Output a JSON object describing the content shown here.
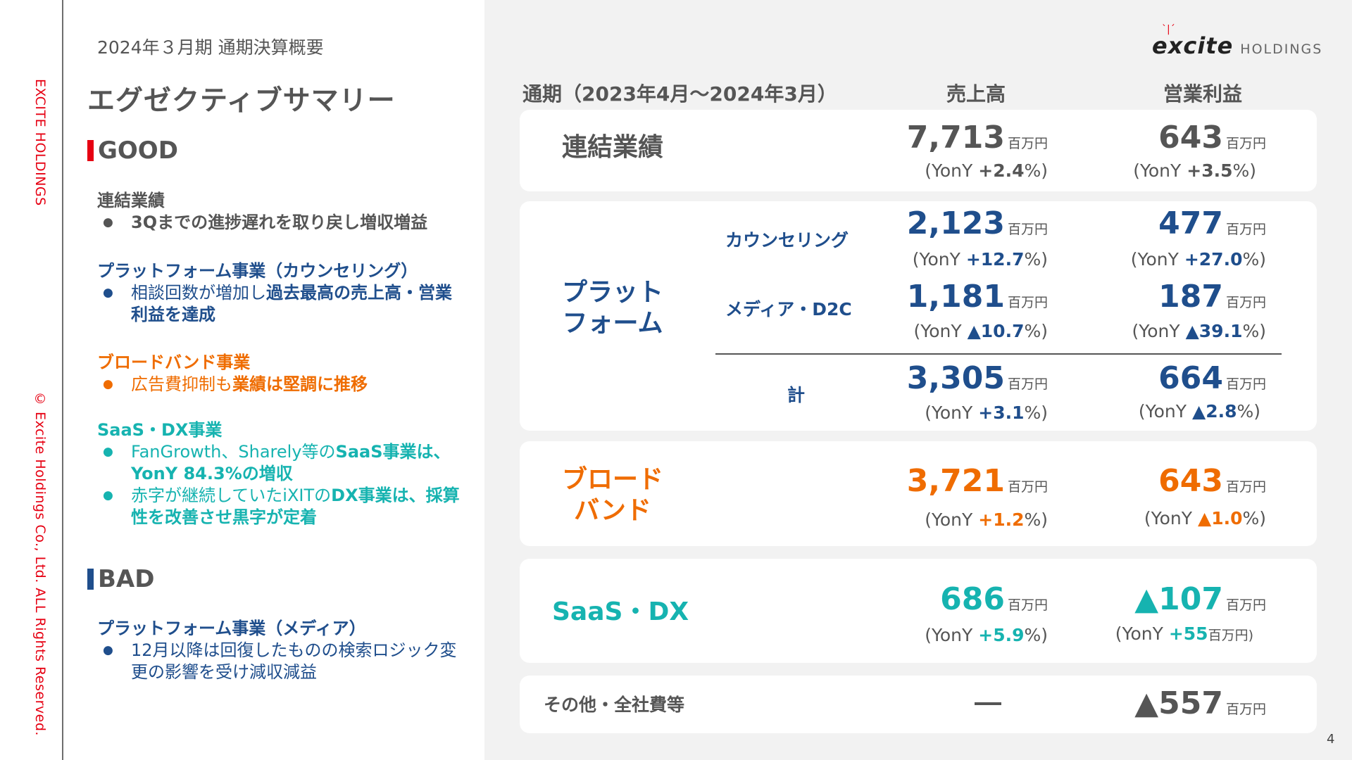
{
  "sidebar": {
    "top_text": "EXCITE HOLDINGS",
    "bottom_text": "© Excite Holdings Co., Ltd. ALL Rights Reserved."
  },
  "header": {
    "subtitle": "2024年３月期 通期決算概要",
    "title": "エグゼクティブサマリー"
  },
  "logo": {
    "main": "excite",
    "sub": "HOLDINGS",
    "spark": "ˋ|ˊ"
  },
  "good": {
    "heading": "GOOD",
    "bar_color": "#e60012",
    "blocks": [
      {
        "title": "連結業績",
        "items": [
          "3Qまでの進捗遅れを取り戻し増収増益"
        ]
      },
      {
        "title": "プラットフォーム事業（カウンセリング）",
        "item_pre": "相談回数が増加し",
        "item_bold": "過去最高の売上高・営業利益を達成"
      },
      {
        "title": "ブロードバンド事業",
        "item_pre": "広告費抑制も",
        "item_bold": "業績は堅調に推移"
      },
      {
        "title": "SaaS・DX事業",
        "item1_pre": "FanGrowth、Sharely等の",
        "item1_bold": "SaaS事業は、YonY 84.3%の増収",
        "item2_pre": "赤字が継続していたiXITの",
        "item2_bold": "DX事業は、採算性を改善させ黒字が定着"
      }
    ]
  },
  "bad": {
    "heading": "BAD",
    "bar_color": "#1f4e8c",
    "blocks": [
      {
        "title": "プラットフォーム事業（メディア）",
        "items": [
          "12月以降は回復したものの検索ロジック変更の影響を受け減収減益"
        ]
      }
    ]
  },
  "table": {
    "period_header": "通期（2023年4月～2024年3月）",
    "sales_header": "売上高",
    "op_header": "営業利益",
    "unit": "百万円",
    "yoy_prefix": "(YonY ",
    "yoy_suffix": "%)",
    "consolidated": {
      "label": "連結業績",
      "sales": "7,713",
      "sales_yoy": "+2.4",
      "op": "643",
      "op_yoy": "+3.5"
    },
    "platform": {
      "label_line1": "プラット",
      "label_line2": "フォーム",
      "counseling": {
        "label": "カウンセリング",
        "sales": "2,123",
        "sales_yoy": "+12.7",
        "op": "477",
        "op_yoy": "+27.0"
      },
      "media": {
        "label": "メディア・D2C",
        "sales": "1,181",
        "sales_yoy": "▲10.7",
        "op": "187",
        "op_yoy": "▲39.1"
      },
      "total": {
        "label": "計",
        "sales": "3,305",
        "sales_yoy": "+3.1",
        "op": "664",
        "op_yoy": "▲2.8"
      }
    },
    "broadband": {
      "label_line1": "ブロード",
      "label_line2": "バンド",
      "sales": "3,721",
      "sales_yoy": "+1.2",
      "op": "643",
      "op_yoy": "▲1.0"
    },
    "saas": {
      "label": "SaaS・DX",
      "sales": "686",
      "sales_yoy": "+5.9",
      "op": "▲107",
      "op_yoy": "+55",
      "op_yoy_unit": "百万円)"
    },
    "other": {
      "label": "その他・全社費等",
      "sales": "ー",
      "op": "▲557"
    }
  },
  "page_number": "4",
  "colors": {
    "navy": "#1f4e8c",
    "orange": "#ef6c00",
    "teal": "#16b3b0",
    "red": "#e60012",
    "gray": "#555555"
  }
}
